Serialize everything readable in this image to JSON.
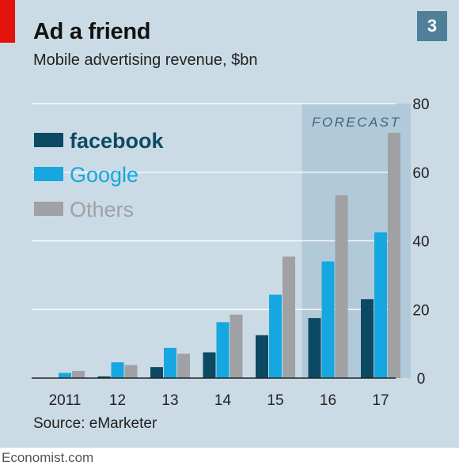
{
  "header": {
    "title": "Ad a friend",
    "subtitle": "Mobile advertising revenue, $bn",
    "badge": "3"
  },
  "source": "Source: eMarketer",
  "footer": "Economist.com",
  "chart_data": {
    "type": "bar",
    "title": "Ad a friend",
    "subtitle": "Mobile advertising revenue, $bn",
    "categories": [
      "2011",
      "12",
      "13",
      "14",
      "15",
      "16",
      "17"
    ],
    "series": [
      {
        "name": "facebook",
        "color": "#0c4a63",
        "values": [
          0,
          0.5,
          3.2,
          7.5,
          12.5,
          17.5,
          23
        ]
      },
      {
        "name": "Google",
        "color": "#17a7e0",
        "values": [
          1.5,
          4.6,
          8.8,
          16.3,
          24.3,
          34,
          42.5
        ]
      },
      {
        "name": "Others",
        "color": "#9fa1a4",
        "values": [
          2.1,
          3.8,
          7.1,
          18.5,
          35.4,
          53.3,
          71.5
        ]
      }
    ],
    "ylim": [
      0,
      80
    ],
    "yticks": [
      0,
      20,
      40,
      60,
      80
    ],
    "y_axis_position": "right",
    "grid": true,
    "legend_position": "top-left",
    "forecast": {
      "label": "FORECAST",
      "from_category": "16",
      "to_category": "17"
    }
  }
}
